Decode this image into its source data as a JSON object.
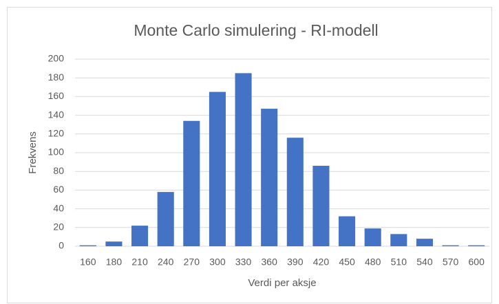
{
  "chart_data": {
    "type": "bar",
    "title": "Monte Carlo simulering - RI-modell",
    "x_label": "Verdi per aksje",
    "y_label": "Frekvens",
    "categories": [
      "160",
      "180",
      "210",
      "240",
      "270",
      "300",
      "330",
      "360",
      "390",
      "420",
      "450",
      "480",
      "510",
      "540",
      "570",
      "600"
    ],
    "values": [
      1,
      5,
      22,
      58,
      134,
      165,
      185,
      147,
      116,
      86,
      32,
      19,
      13,
      8,
      1,
      1
    ],
    "color": "#4472c4",
    "ylim": [
      0,
      200
    ],
    "yticks": [
      0,
      20,
      40,
      60,
      80,
      100,
      120,
      140,
      160,
      180,
      200
    ],
    "grid": true
  }
}
